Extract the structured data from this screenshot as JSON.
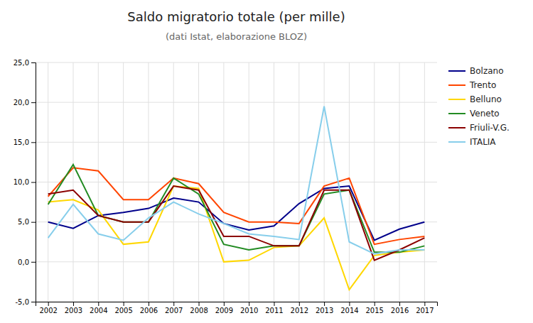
{
  "chart_data": {
    "type": "line",
    "title": "Saldo migratorio totale (per mille)",
    "subtitle": "(dati Istat, elaborazione BLOZ)",
    "x": [
      2002,
      2003,
      2004,
      2005,
      2006,
      2007,
      2008,
      2009,
      2010,
      2011,
      2012,
      2013,
      2014,
      2015,
      2016,
      2017
    ],
    "series": [
      {
        "name": "Bolzano",
        "color": "#00008B",
        "values": [
          5.0,
          4.2,
          5.8,
          6.2,
          6.7,
          8.0,
          7.5,
          4.8,
          4.0,
          4.5,
          7.3,
          9.2,
          9.5,
          2.7,
          4.1,
          5.0
        ]
      },
      {
        "name": "Trento",
        "color": "#FF4500",
        "values": [
          8.2,
          11.8,
          11.4,
          7.8,
          7.8,
          10.5,
          9.8,
          6.2,
          5.0,
          5.0,
          4.8,
          9.5,
          10.5,
          2.2,
          2.8,
          3.2
        ]
      },
      {
        "name": "Belluno",
        "color": "#FFD700",
        "values": [
          7.5,
          7.8,
          6.5,
          2.2,
          2.5,
          9.5,
          9.2,
          0.0,
          0.2,
          1.8,
          2.0,
          5.5,
          -3.5,
          0.8,
          1.2,
          1.5
        ]
      },
      {
        "name": "Veneto",
        "color": "#228B22",
        "values": [
          7.2,
          12.2,
          5.8,
          5.0,
          5.0,
          10.5,
          8.5,
          2.2,
          1.5,
          2.0,
          2.0,
          8.5,
          9.0,
          1.2,
          1.2,
          2.0
        ]
      },
      {
        "name": "Friuli-V.G.",
        "color": "#8B0000",
        "values": [
          8.5,
          9.0,
          5.8,
          5.0,
          5.0,
          9.5,
          9.0,
          3.2,
          3.2,
          2.0,
          2.0,
          9.0,
          9.0,
          0.2,
          1.5,
          3.0
        ]
      },
      {
        "name": "ITALIA",
        "color": "#87CEEB",
        "values": [
          3.0,
          7.2,
          3.5,
          2.7,
          5.5,
          7.5,
          6.0,
          4.8,
          3.5,
          3.2,
          2.8,
          19.5,
          2.5,
          1.0,
          1.5,
          1.5
        ]
      }
    ],
    "xlim": [
      2001.5,
      2017.5
    ],
    "xticks": [
      2002,
      2003,
      2004,
      2005,
      2006,
      2007,
      2008,
      2009,
      2010,
      2011,
      2012,
      2013,
      2014,
      2015,
      2016,
      2017
    ],
    "ylim": [
      -5.0,
      25.0
    ],
    "yticks": [
      {
        "value": -5.0,
        "label": "-5,0"
      },
      {
        "value": 0.0,
        "label": "0,0"
      },
      {
        "value": 5.0,
        "label": "5,0"
      },
      {
        "value": 10.0,
        "label": "10,0"
      },
      {
        "value": 15.0,
        "label": "15,0"
      },
      {
        "value": 20.0,
        "label": "20,0"
      },
      {
        "value": 25.0,
        "label": "25,0"
      }
    ],
    "grid": true,
    "legend": "right"
  }
}
